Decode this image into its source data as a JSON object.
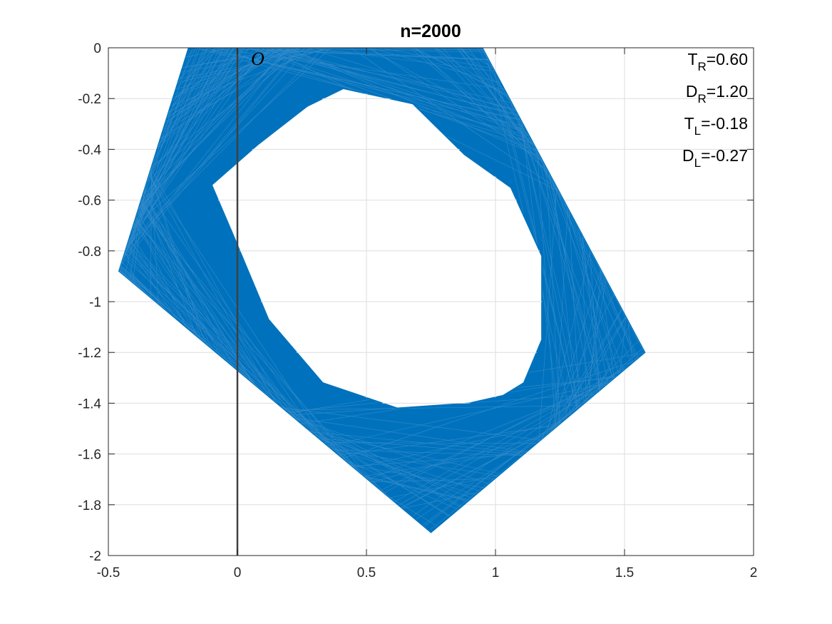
{
  "chart_data": {
    "type": "line",
    "title": "n=2000",
    "xlabel": "",
    "ylabel": "",
    "xlim": [
      -0.5,
      2
    ],
    "ylim": [
      -2,
      0
    ],
    "xticks": [
      -0.5,
      0,
      0.5,
      1,
      1.5,
      2
    ],
    "xtick_labels": [
      "-0.5",
      "0",
      "0.5",
      "1",
      "1.5",
      "2"
    ],
    "yticks": [
      0,
      -0.2,
      -0.4,
      -0.6,
      -0.8,
      -1,
      -1.2,
      -1.4,
      -1.6,
      -1.8,
      -2
    ],
    "ytick_labels": [
      "0",
      "-0.2",
      "-0.4",
      "-0.6",
      "-0.8",
      "-1",
      "-1.2",
      "-1.4",
      "-1.6",
      "-1.8",
      "-2"
    ],
    "grid": true,
    "series_color": "#0072BD",
    "vertical_line": {
      "x": 0,
      "color": "#404040"
    },
    "origin_label": "O",
    "outer_pentagon": {
      "x": [
        -0.19,
        0.95,
        1.58,
        0.75,
        -0.46
      ],
      "y": [
        0,
        0,
        -1.2,
        -1.91,
        -0.88
      ]
    },
    "inner_hole": {
      "x": [
        0.41,
        0.68,
        0.88,
        1.06,
        1.18,
        1.18,
        1.11,
        1.03,
        0.9,
        0.62,
        0.33,
        0.12,
        -0.02,
        -0.1,
        0.08,
        0.27
      ],
      "y": [
        -0.16,
        -0.22,
        -0.42,
        -0.55,
        -0.82,
        -1.15,
        -1.32,
        -1.37,
        -1.4,
        -1.42,
        -1.32,
        -1.07,
        -0.73,
        -0.54,
        -0.38,
        -0.23
      ]
    },
    "annotations": [
      {
        "main": "T",
        "sub": "R",
        "value": "=0.60"
      },
      {
        "main": "D",
        "sub": "R",
        "value": "=1.20"
      },
      {
        "main": "T",
        "sub": "L",
        "value": "=-0.18"
      },
      {
        "main": "D",
        "sub": "L",
        "value": "=-0.27"
      }
    ]
  }
}
